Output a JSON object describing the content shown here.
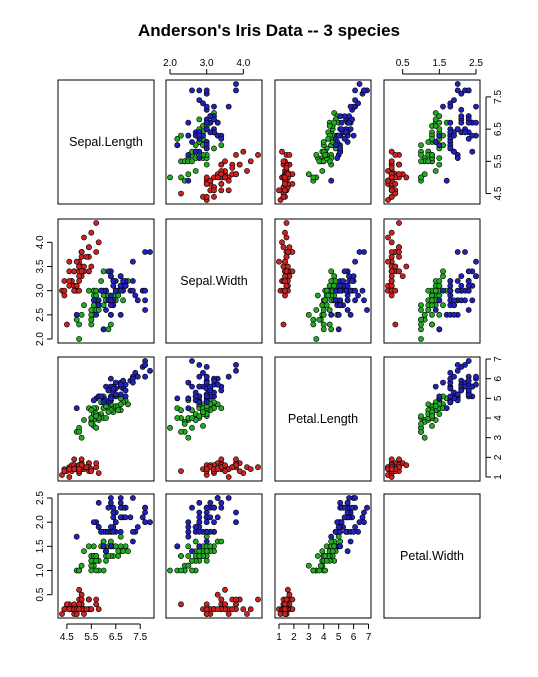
{
  "chart_data": {
    "type": "scatter",
    "subtype": "pairs-scatterplot-matrix",
    "title": "Anderson's Iris Data -- 3 species",
    "variables": [
      "Sepal.Length",
      "Sepal.Width",
      "Petal.Length",
      "Petal.Width"
    ],
    "axes": {
      "Sepal.Length": {
        "range": [
          4.3,
          7.9
        ],
        "ticks": [
          "4.5",
          "5.5",
          "6.5",
          "7.5"
        ]
      },
      "Sepal.Width": {
        "range": [
          2.0,
          4.4
        ],
        "ticks": [
          "2.0",
          "2.5",
          "3.0",
          "3.5",
          "4.0"
        ]
      },
      "Petal.Length": {
        "range": [
          1.0,
          6.9
        ],
        "ticks": [
          "1",
          "2",
          "3",
          "4",
          "5",
          "6",
          "7"
        ]
      },
      "Petal.Width": {
        "range": [
          0.1,
          2.5
        ],
        "ticks": [
          "0.5",
          "1.0",
          "1.5",
          "2.0",
          "2.5"
        ]
      }
    },
    "top_axis_labels": {
      "Sepal.Width": [
        "2.0",
        "3.0",
        "4.0"
      ],
      "Petal.Width": [
        "0.5",
        "1.5",
        "2.5"
      ]
    },
    "right_axis_labels": {
      "Sepal.Length": [
        "4.5",
        "5.5",
        "6.5",
        "7.5"
      ],
      "Petal.Length": [
        "1",
        "2",
        "3",
        "4",
        "5",
        "6",
        "7"
      ]
    },
    "bottom_axis_labels": {
      "Sepal.Length": [
        "4.5",
        "5.5",
        "6.5",
        "7.5"
      ],
      "Petal.Length": [
        "1",
        "2",
        "3",
        "4",
        "5",
        "6",
        "7"
      ]
    },
    "left_axis_labels": {
      "Sepal.Width": [
        "2.0",
        "2.5",
        "3.0",
        "3.5",
        "4.0"
      ],
      "Petal.Width": [
        "0.5",
        "1.0",
        "1.5",
        "2.0",
        "2.5"
      ]
    },
    "marker": "filled-circle",
    "grid": false,
    "series": [
      {
        "color": "#cc2222",
        "points": [
          [
            5.1,
            3.5,
            1.4,
            0.2
          ],
          [
            4.9,
            3.0,
            1.4,
            0.2
          ],
          [
            4.7,
            3.2,
            1.3,
            0.2
          ],
          [
            4.6,
            3.1,
            1.5,
            0.2
          ],
          [
            5.0,
            3.6,
            1.4,
            0.2
          ],
          [
            5.4,
            3.9,
            1.7,
            0.4
          ],
          [
            4.6,
            3.4,
            1.4,
            0.3
          ],
          [
            5.0,
            3.4,
            1.5,
            0.2
          ],
          [
            4.4,
            2.9,
            1.4,
            0.2
          ],
          [
            4.9,
            3.1,
            1.5,
            0.1
          ],
          [
            5.4,
            3.7,
            1.5,
            0.2
          ],
          [
            4.8,
            3.4,
            1.6,
            0.2
          ],
          [
            4.8,
            3.0,
            1.4,
            0.1
          ],
          [
            4.3,
            3.0,
            1.1,
            0.1
          ],
          [
            5.8,
            4.0,
            1.2,
            0.2
          ],
          [
            5.7,
            4.4,
            1.5,
            0.4
          ],
          [
            5.4,
            3.9,
            1.3,
            0.4
          ],
          [
            5.1,
            3.5,
            1.4,
            0.3
          ],
          [
            5.7,
            3.8,
            1.7,
            0.3
          ],
          [
            5.1,
            3.8,
            1.5,
            0.3
          ],
          [
            5.4,
            3.4,
            1.7,
            0.2
          ],
          [
            5.1,
            3.7,
            1.5,
            0.4
          ],
          [
            4.6,
            3.6,
            1.0,
            0.2
          ],
          [
            5.1,
            3.3,
            1.7,
            0.5
          ],
          [
            4.8,
            3.4,
            1.9,
            0.2
          ],
          [
            5.0,
            3.0,
            1.6,
            0.2
          ],
          [
            5.0,
            3.4,
            1.6,
            0.4
          ],
          [
            5.2,
            3.5,
            1.5,
            0.2
          ],
          [
            5.2,
            3.4,
            1.4,
            0.2
          ],
          [
            4.7,
            3.2,
            1.6,
            0.2
          ],
          [
            4.8,
            3.1,
            1.6,
            0.2
          ],
          [
            5.4,
            3.4,
            1.5,
            0.4
          ],
          [
            5.2,
            4.1,
            1.5,
            0.1
          ],
          [
            5.5,
            4.2,
            1.4,
            0.2
          ],
          [
            4.9,
            3.1,
            1.5,
            0.2
          ],
          [
            5.0,
            3.2,
            1.2,
            0.2
          ],
          [
            5.5,
            3.5,
            1.3,
            0.2
          ],
          [
            4.9,
            3.6,
            1.4,
            0.1
          ],
          [
            4.4,
            3.0,
            1.3,
            0.2
          ],
          [
            5.1,
            3.4,
            1.5,
            0.2
          ],
          [
            5.0,
            3.5,
            1.3,
            0.3
          ],
          [
            4.5,
            2.3,
            1.3,
            0.3
          ],
          [
            4.4,
            3.2,
            1.3,
            0.2
          ],
          [
            5.0,
            3.5,
            1.6,
            0.6
          ],
          [
            5.1,
            3.8,
            1.9,
            0.4
          ],
          [
            4.8,
            3.0,
            1.4,
            0.3
          ],
          [
            5.1,
            3.8,
            1.6,
            0.2
          ],
          [
            4.6,
            3.2,
            1.4,
            0.2
          ],
          [
            5.3,
            3.7,
            1.5,
            0.2
          ],
          [
            5.0,
            3.3,
            1.4,
            0.2
          ]
        ]
      },
      {
        "color": "#22aa22",
        "points": [
          [
            7.0,
            3.2,
            4.7,
            1.4
          ],
          [
            6.4,
            3.2,
            4.5,
            1.5
          ],
          [
            6.9,
            3.1,
            4.9,
            1.5
          ],
          [
            5.5,
            2.3,
            4.0,
            1.3
          ],
          [
            6.5,
            2.8,
            4.6,
            1.5
          ],
          [
            5.7,
            2.8,
            4.5,
            1.3
          ],
          [
            6.3,
            3.3,
            4.7,
            1.6
          ],
          [
            4.9,
            2.4,
            3.3,
            1.0
          ],
          [
            6.6,
            2.9,
            4.6,
            1.3
          ],
          [
            5.2,
            2.7,
            3.9,
            1.4
          ],
          [
            5.0,
            2.0,
            3.5,
            1.0
          ],
          [
            5.9,
            3.0,
            4.2,
            1.5
          ],
          [
            6.0,
            2.2,
            4.0,
            1.0
          ],
          [
            6.1,
            2.9,
            4.7,
            1.4
          ],
          [
            5.6,
            2.9,
            3.6,
            1.3
          ],
          [
            6.7,
            3.1,
            4.4,
            1.4
          ],
          [
            5.6,
            3.0,
            4.5,
            1.5
          ],
          [
            5.8,
            2.7,
            4.1,
            1.0
          ],
          [
            6.2,
            2.2,
            4.5,
            1.5
          ],
          [
            5.6,
            2.5,
            3.9,
            1.1
          ],
          [
            5.9,
            3.2,
            4.8,
            1.8
          ],
          [
            6.1,
            2.8,
            4.0,
            1.3
          ],
          [
            6.3,
            2.5,
            4.9,
            1.5
          ],
          [
            6.1,
            2.8,
            4.7,
            1.2
          ],
          [
            6.4,
            2.9,
            4.3,
            1.3
          ],
          [
            6.6,
            3.0,
            4.4,
            1.4
          ],
          [
            6.8,
            2.8,
            4.8,
            1.4
          ],
          [
            6.7,
            3.0,
            5.0,
            1.7
          ],
          [
            6.0,
            2.9,
            4.5,
            1.5
          ],
          [
            5.7,
            2.6,
            3.5,
            1.0
          ],
          [
            5.5,
            2.4,
            3.8,
            1.1
          ],
          [
            5.5,
            2.4,
            3.7,
            1.0
          ],
          [
            5.8,
            2.7,
            3.9,
            1.2
          ],
          [
            6.0,
            2.7,
            5.1,
            1.6
          ],
          [
            5.4,
            3.0,
            4.5,
            1.5
          ],
          [
            6.0,
            3.4,
            4.5,
            1.6
          ],
          [
            6.7,
            3.1,
            4.7,
            1.5
          ],
          [
            6.3,
            2.3,
            4.4,
            1.3
          ],
          [
            5.6,
            3.0,
            4.1,
            1.3
          ],
          [
            5.5,
            2.5,
            4.0,
            1.3
          ],
          [
            5.5,
            2.6,
            4.4,
            1.2
          ],
          [
            6.1,
            3.0,
            4.6,
            1.4
          ],
          [
            5.8,
            2.6,
            4.0,
            1.2
          ],
          [
            5.0,
            2.3,
            3.3,
            1.0
          ],
          [
            5.6,
            2.7,
            4.2,
            1.3
          ],
          [
            5.7,
            3.0,
            4.2,
            1.2
          ],
          [
            5.7,
            2.9,
            4.2,
            1.3
          ],
          [
            6.2,
            2.9,
            4.3,
            1.3
          ],
          [
            5.1,
            2.5,
            3.0,
            1.1
          ],
          [
            5.7,
            2.8,
            4.1,
            1.3
          ]
        ]
      },
      {
        "color": "#2222bb",
        "points": [
          [
            6.3,
            3.3,
            6.0,
            2.5
          ],
          [
            5.8,
            2.7,
            5.1,
            1.9
          ],
          [
            7.1,
            3.0,
            5.9,
            2.1
          ],
          [
            6.3,
            2.9,
            5.6,
            1.8
          ],
          [
            6.5,
            3.0,
            5.8,
            2.2
          ],
          [
            7.6,
            3.0,
            6.6,
            2.1
          ],
          [
            4.9,
            2.5,
            4.5,
            1.7
          ],
          [
            7.3,
            2.9,
            6.3,
            1.8
          ],
          [
            6.7,
            2.5,
            5.8,
            1.8
          ],
          [
            7.2,
            3.6,
            6.1,
            2.5
          ],
          [
            6.5,
            3.2,
            5.1,
            2.0
          ],
          [
            6.4,
            2.7,
            5.3,
            1.9
          ],
          [
            6.8,
            3.0,
            5.5,
            2.1
          ],
          [
            5.7,
            2.5,
            5.0,
            2.0
          ],
          [
            5.8,
            2.8,
            5.1,
            2.4
          ],
          [
            6.4,
            3.2,
            5.3,
            2.3
          ],
          [
            6.5,
            3.0,
            5.5,
            1.8
          ],
          [
            7.7,
            3.8,
            6.7,
            2.2
          ],
          [
            7.7,
            2.6,
            6.9,
            2.3
          ],
          [
            6.0,
            2.2,
            5.0,
            1.5
          ],
          [
            6.9,
            3.2,
            5.7,
            2.3
          ],
          [
            5.6,
            2.8,
            4.9,
            2.0
          ],
          [
            7.7,
            2.8,
            6.7,
            2.0
          ],
          [
            6.3,
            2.7,
            4.9,
            1.8
          ],
          [
            6.7,
            3.3,
            5.7,
            2.1
          ],
          [
            7.2,
            3.2,
            6.0,
            1.8
          ],
          [
            6.2,
            2.8,
            4.8,
            1.8
          ],
          [
            6.1,
            3.0,
            4.9,
            1.8
          ],
          [
            6.4,
            2.8,
            5.6,
            2.1
          ],
          [
            7.2,
            3.0,
            5.8,
            1.6
          ],
          [
            7.4,
            2.8,
            6.1,
            1.9
          ],
          [
            7.9,
            3.8,
            6.4,
            2.0
          ],
          [
            6.4,
            2.8,
            5.6,
            2.2
          ],
          [
            6.3,
            2.8,
            5.1,
            1.5
          ],
          [
            6.1,
            2.6,
            5.6,
            1.4
          ],
          [
            7.7,
            3.0,
            6.1,
            2.3
          ],
          [
            6.3,
            3.4,
            5.6,
            2.4
          ],
          [
            6.4,
            3.1,
            5.5,
            1.8
          ],
          [
            6.0,
            3.0,
            4.8,
            1.8
          ],
          [
            6.9,
            3.1,
            5.4,
            2.1
          ],
          [
            6.7,
            3.1,
            5.6,
            2.4
          ],
          [
            6.9,
            3.1,
            5.1,
            2.3
          ],
          [
            5.8,
            2.7,
            5.1,
            1.9
          ],
          [
            6.8,
            3.2,
            5.9,
            2.3
          ],
          [
            6.7,
            3.3,
            5.7,
            2.5
          ],
          [
            6.7,
            3.0,
            5.2,
            2.3
          ],
          [
            6.3,
            2.5,
            5.0,
            1.9
          ],
          [
            6.5,
            3.0,
            5.2,
            2.0
          ],
          [
            6.2,
            3.4,
            5.4,
            2.3
          ],
          [
            5.9,
            3.0,
            5.1,
            1.8
          ]
        ]
      }
    ]
  }
}
